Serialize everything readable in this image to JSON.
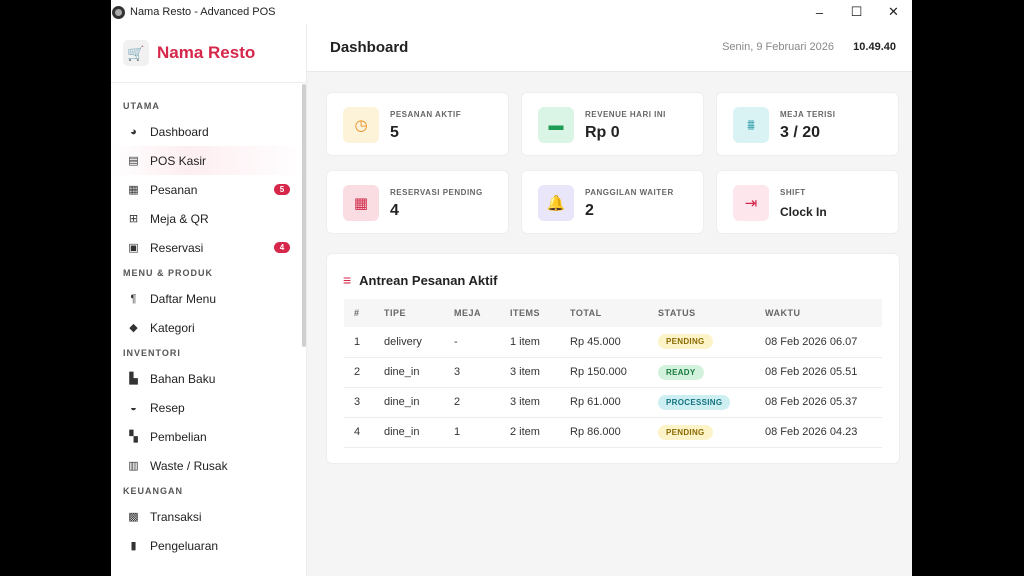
{
  "window": {
    "title": "Nama Resto - Advanced POS"
  },
  "window_controls": {
    "minimize": "–",
    "maximize": "☐",
    "close": "✕"
  },
  "brand": {
    "logo": "🛒",
    "name": "Nama Resto"
  },
  "sidebar": {
    "sections": [
      {
        "title": "UTAMA",
        "items": [
          {
            "label": "Dashboard",
            "icon": "◕",
            "icon_name": "chart-pie-icon",
            "badge": null,
            "active": false
          },
          {
            "label": "POS Kasir",
            "icon": "▤",
            "icon_name": "cash-register-icon",
            "badge": null,
            "active": true
          },
          {
            "label": "Pesanan",
            "icon": "▦",
            "icon_name": "receipt-icon",
            "badge": "5",
            "active": false
          },
          {
            "label": "Meja & QR",
            "icon": "⊞",
            "icon_name": "table-grid-icon",
            "badge": null,
            "active": false
          },
          {
            "label": "Reservasi",
            "icon": "▣",
            "icon_name": "calendar-check-icon",
            "badge": "4",
            "active": false
          }
        ]
      },
      {
        "title": "MENU & PRODUK",
        "items": [
          {
            "label": "Daftar Menu",
            "icon": "¶",
            "icon_name": "utensils-icon",
            "badge": null,
            "active": false
          },
          {
            "label": "Kategori",
            "icon": "◆",
            "icon_name": "tags-icon",
            "badge": null,
            "active": false
          }
        ]
      },
      {
        "title": "INVENTORI",
        "items": [
          {
            "label": "Bahan Baku",
            "icon": "▙",
            "icon_name": "boxes-icon",
            "badge": null,
            "active": false
          },
          {
            "label": "Resep",
            "icon": "◒",
            "icon_name": "mortar-pestle-icon",
            "badge": null,
            "active": false
          },
          {
            "label": "Pembelian",
            "icon": "▚",
            "icon_name": "truck-icon",
            "badge": null,
            "active": false
          },
          {
            "label": "Waste / Rusak",
            "icon": "▥",
            "icon_name": "trash-icon",
            "badge": null,
            "active": false
          }
        ]
      },
      {
        "title": "KEUANGAN",
        "items": [
          {
            "label": "Transaksi",
            "icon": "▩",
            "icon_name": "money-bill-icon",
            "badge": null,
            "active": false
          },
          {
            "label": "Pengeluaran",
            "icon": "▮",
            "icon_name": "file-invoice-icon",
            "badge": null,
            "active": false
          }
        ]
      }
    ]
  },
  "header": {
    "title": "Dashboard",
    "date": "Senin, 9 Februari 2026",
    "time": "10.49.40"
  },
  "cards": [
    {
      "label": "PESANAN AKTIF",
      "value": "5",
      "icon": "◷",
      "icon_name": "clock-icon",
      "bg": "#fdf3d8",
      "color": "#e8891a"
    },
    {
      "label": "REVENUE HARI INI",
      "value": "Rp 0",
      "icon": "▬",
      "icon_name": "wallet-icon",
      "bg": "#daf5e5",
      "color": "#1e9c55"
    },
    {
      "label": "MEJA TERISI",
      "value": "3 / 20",
      "icon": "⩩",
      "icon_name": "chair-icon",
      "bg": "#d9f3f5",
      "color": "#168f9d"
    },
    {
      "label": "RESERVASI PENDING",
      "value": "4",
      "icon": "▦",
      "icon_name": "calendar-icon",
      "bg": "#fadde2",
      "color": "#cf2648"
    },
    {
      "label": "PANGGILAN WAITER",
      "value": "2",
      "icon": "🔔",
      "icon_name": "bell-icon",
      "bg": "#e8e6f8",
      "color": "#4c3fb0"
    },
    {
      "label": "SHIFT",
      "value": "Clock In",
      "icon": "⇥",
      "icon_name": "sign-in-icon",
      "bg": "#fde6ec",
      "color": "#d6264a"
    }
  ],
  "orders_table": {
    "title": "Antrean Pesanan Aktif",
    "icon": "≡",
    "columns": [
      "#",
      "TIPE",
      "MEJA",
      "ITEMS",
      "TOTAL",
      "STATUS",
      "WAKTU"
    ],
    "rows": [
      {
        "no": "1",
        "type": "delivery",
        "table": "-",
        "items": "1 item",
        "total": "Rp 45.000",
        "status": "PENDING",
        "time": "08 Feb 2026 06.07"
      },
      {
        "no": "2",
        "type": "dine_in",
        "table": "3",
        "items": "3 item",
        "total": "Rp 150.000",
        "status": "READY",
        "time": "08 Feb 2026 05.51"
      },
      {
        "no": "3",
        "type": "dine_in",
        "table": "2",
        "items": "3 item",
        "total": "Rp 61.000",
        "status": "PROCESSING",
        "time": "08 Feb 2026 05.37"
      },
      {
        "no": "4",
        "type": "dine_in",
        "table": "1",
        "items": "2 item",
        "total": "Rp 86.000",
        "status": "PENDING",
        "time": "08 Feb 2026 04.23"
      }
    ]
  },
  "status_colors": {
    "PENDING": {
      "bg": "#fdf3c9",
      "fg": "#8a6a00"
    },
    "READY": {
      "bg": "#d3f2dd",
      "fg": "#1a7a3c"
    },
    "PROCESSING": {
      "bg": "#cdeff2",
      "fg": "#137380"
    }
  }
}
